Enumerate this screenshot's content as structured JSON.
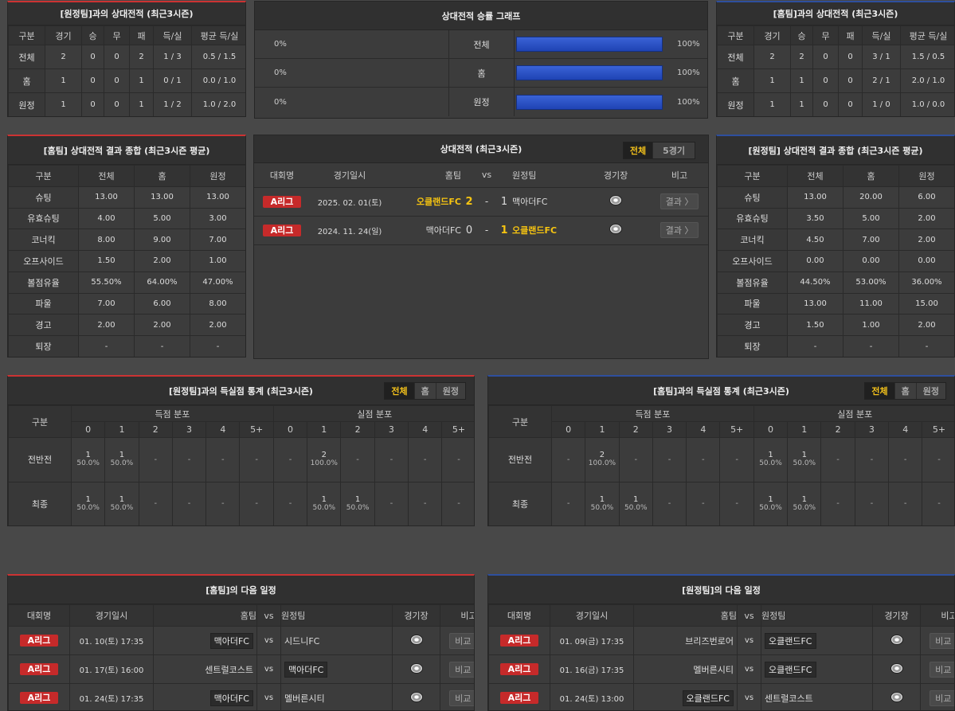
{
  "h2h_away": {
    "title": "[원정팀]과의 상대전적 (최근3시즌)",
    "headers": [
      "구분",
      "경기",
      "승",
      "무",
      "패",
      "득/실",
      "평균 득/실"
    ],
    "rows": [
      [
        "전체",
        "2",
        "0",
        "0",
        "2",
        "1 / 3",
        "0.5 / 1.5"
      ],
      [
        "홈",
        "1",
        "0",
        "0",
        "1",
        "0 / 1",
        "0.0 / 1.0"
      ],
      [
        "원정",
        "1",
        "0",
        "0",
        "1",
        "1 / 2",
        "1.0 / 2.0"
      ]
    ]
  },
  "graph": {
    "title": "상대전적 승률 그래프",
    "rows": [
      {
        "left": "0%",
        "label": "전체",
        "right": "100%",
        "ratio": 1.0
      },
      {
        "left": "0%",
        "label": "홈",
        "right": "100%",
        "ratio": 1.0
      },
      {
        "left": "0%",
        "label": "원정",
        "right": "100%",
        "ratio": 1.0
      }
    ]
  },
  "h2h_home": {
    "title": "[홈팀]과의 상대전적 (최근3시즌)",
    "headers": [
      "구분",
      "경기",
      "승",
      "무",
      "패",
      "득/실",
      "평균 득/실"
    ],
    "rows": [
      [
        "전체",
        "2",
        "2",
        "0",
        "0",
        "3 / 1",
        "1.5 / 0.5"
      ],
      [
        "홈",
        "1",
        "1",
        "0",
        "0",
        "2 / 1",
        "2.0 / 1.0"
      ],
      [
        "원정",
        "1",
        "1",
        "0",
        "0",
        "1 / 0",
        "1.0 / 0.0"
      ]
    ]
  },
  "sum_home": {
    "title": "[홈팀] 상대전적 결과 종합 (최근3시즌 평균)",
    "headers": [
      "구분",
      "전체",
      "홈",
      "원정"
    ],
    "rows": [
      [
        "슈팅",
        "13.00",
        "13.00",
        "13.00"
      ],
      [
        "유효슈팅",
        "4.00",
        "5.00",
        "3.00"
      ],
      [
        "코너킥",
        "8.00",
        "9.00",
        "7.00"
      ],
      [
        "오프사이드",
        "1.50",
        "2.00",
        "1.00"
      ],
      [
        "볼점유율",
        "55.50%",
        "64.00%",
        "47.00%"
      ],
      [
        "파울",
        "7.00",
        "6.00",
        "8.00"
      ],
      [
        "경고",
        "2.00",
        "2.00",
        "2.00"
      ],
      [
        "퇴장",
        "-",
        "-",
        "-"
      ]
    ]
  },
  "h2h_matches": {
    "title": "상대전적 (최근3시즌)",
    "tabs": [
      "전체",
      "5경기"
    ],
    "headers": {
      "comp": "대회명",
      "date": "경기일시",
      "home": "홈팀",
      "vs": "vs",
      "away": "원정팀",
      "stadium": "경기장",
      "note": "비고"
    },
    "rows": [
      {
        "comp": "A리그",
        "date": "2025. 02. 01(토)",
        "home": "오클랜드FC",
        "hs": "2",
        "dash": "-",
        "as": "1",
        "away": "맥아더FC",
        "btn": "결과 〉",
        "home_bold": true,
        "away_bold": false
      },
      {
        "comp": "A리그",
        "date": "2024. 11. 24(일)",
        "home": "맥아더FC",
        "hs": "0",
        "dash": "-",
        "as": "1",
        "away": "오클랜드FC",
        "btn": "결과 〉",
        "home_bold": false,
        "away_bold": true
      }
    ]
  },
  "sum_away": {
    "title": "[원정팀] 상대전적 결과 종합 (최근3시즌 평균)",
    "headers": [
      "구분",
      "전체",
      "홈",
      "원정"
    ],
    "rows": [
      [
        "슈팅",
        "13.00",
        "20.00",
        "6.00"
      ],
      [
        "유효슈팅",
        "3.50",
        "5.00",
        "2.00"
      ],
      [
        "코너킥",
        "4.50",
        "7.00",
        "2.00"
      ],
      [
        "오프사이드",
        "0.00",
        "0.00",
        "0.00"
      ],
      [
        "볼점유율",
        "44.50%",
        "53.00%",
        "36.00%"
      ],
      [
        "파울",
        "13.00",
        "11.00",
        "15.00"
      ],
      [
        "경고",
        "1.50",
        "1.00",
        "2.00"
      ],
      [
        "퇴장",
        "-",
        "-",
        "-"
      ]
    ]
  },
  "goals_left": {
    "title": "[원정팀]과의 득실점 통계 (최근3시즌)",
    "tabs": [
      "전체",
      "홈",
      "원정"
    ],
    "head_label": "구분",
    "scored_label": "득점 분포",
    "conceded_label": "실점 분포",
    "cols": [
      "0",
      "1",
      "2",
      "3",
      "4",
      "5+"
    ],
    "rows": [
      {
        "label": "전반전",
        "scored": [
          [
            "1",
            "50.0%"
          ],
          [
            "1",
            "50.0%"
          ],
          null,
          null,
          null,
          null
        ],
        "conceded": [
          null,
          [
            "2",
            "100.0%"
          ],
          null,
          null,
          null,
          null
        ]
      },
      {
        "label": "최종",
        "scored": [
          [
            "1",
            "50.0%"
          ],
          [
            "1",
            "50.0%"
          ],
          null,
          null,
          null,
          null
        ],
        "conceded": [
          null,
          [
            "1",
            "50.0%"
          ],
          [
            "1",
            "50.0%"
          ],
          null,
          null,
          null
        ]
      }
    ]
  },
  "goals_right": {
    "title": "[홈팀]과의 득실점 통계 (최근3시즌)",
    "tabs": [
      "전체",
      "홈",
      "원정"
    ],
    "head_label": "구분",
    "scored_label": "득점 분포",
    "conceded_label": "실점 분포",
    "cols": [
      "0",
      "1",
      "2",
      "3",
      "4",
      "5+"
    ],
    "rows": [
      {
        "label": "전반전",
        "scored": [
          null,
          [
            "2",
            "100.0%"
          ],
          null,
          null,
          null,
          null
        ],
        "conceded": [
          [
            "1",
            "50.0%"
          ],
          [
            "1",
            "50.0%"
          ],
          null,
          null,
          null,
          null
        ]
      },
      {
        "label": "최종",
        "scored": [
          null,
          [
            "1",
            "50.0%"
          ],
          [
            "1",
            "50.0%"
          ],
          null,
          null,
          null
        ],
        "conceded": [
          [
            "1",
            "50.0%"
          ],
          [
            "1",
            "50.0%"
          ],
          null,
          null,
          null,
          null
        ]
      }
    ]
  },
  "next_home": {
    "title": "[홈팀]의 다음 일정",
    "headers": {
      "comp": "대회명",
      "date": "경기일시",
      "home": "홈팀",
      "vs": "vs",
      "away": "원정팀",
      "stadium": "경기장",
      "note": "비고"
    },
    "rows": [
      {
        "comp": "A리그",
        "date": "01. 10(토) 17:35",
        "home": "맥아더FC",
        "vs": "vs",
        "away": "시드니FC",
        "home_box": true,
        "away_box": false,
        "btn": "비교 〉"
      },
      {
        "comp": "A리그",
        "date": "01. 17(토) 16:00",
        "home": "센트럴코스트",
        "vs": "vs",
        "away": "맥아더FC",
        "home_box": false,
        "away_box": true,
        "btn": "비교 〉"
      },
      {
        "comp": "A리그",
        "date": "01. 24(토) 17:35",
        "home": "맥아더FC",
        "vs": "vs",
        "away": "멜버른시티",
        "home_box": true,
        "away_box": false,
        "btn": "비교 〉"
      }
    ]
  },
  "next_away": {
    "title": "[원정팀]의 다음 일정",
    "headers": {
      "comp": "대회명",
      "date": "경기일시",
      "home": "홈팀",
      "vs": "vs",
      "away": "원정팀",
      "stadium": "경기장",
      "note": "비고"
    },
    "rows": [
      {
        "comp": "A리그",
        "date": "01. 09(금) 17:35",
        "home": "브리즈번로어",
        "vs": "vs",
        "away": "오클랜드FC",
        "home_box": false,
        "away_box": true,
        "btn": "비교 〉"
      },
      {
        "comp": "A리그",
        "date": "01. 16(금) 17:35",
        "home": "멜버른시티",
        "vs": "vs",
        "away": "오클랜드FC",
        "home_box": false,
        "away_box": true,
        "btn": "비교 〉"
      },
      {
        "comp": "A리그",
        "date": "01. 24(토) 13:00",
        "home": "오클랜드FC",
        "vs": "vs",
        "away": "센트럴코스트",
        "home_box": true,
        "away_box": false,
        "btn": "비교 〉"
      }
    ]
  }
}
